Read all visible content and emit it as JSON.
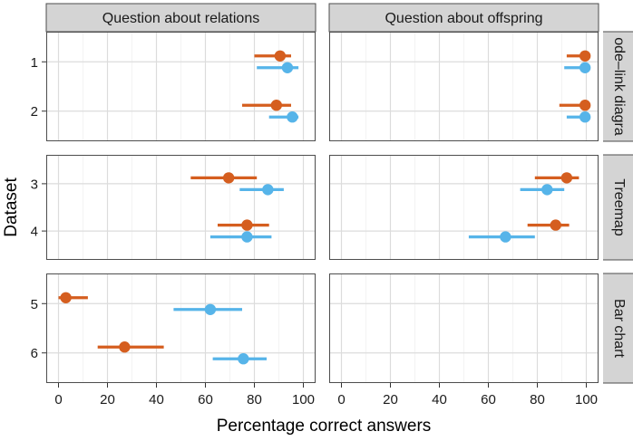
{
  "chart_data": {
    "type": "dot-interval",
    "xlabel": "Percentage correct answers",
    "ylabel": "Dataset",
    "xlim": [
      -5,
      105
    ],
    "x_ticks": [
      0,
      20,
      40,
      60,
      80,
      100
    ],
    "grid": true,
    "legend": "none",
    "columns": [
      "Question about relations",
      "Question about offspring"
    ],
    "rows": [
      {
        "label": "Node–link diagram",
        "shown_label": "ode–link diagra",
        "datasets": [
          "1",
          "2"
        ]
      },
      {
        "label": "Treemap",
        "shown_label": "Treemap",
        "datasets": [
          "3",
          "4"
        ]
      },
      {
        "label": "Bar chart",
        "shown_label": "Bar chart",
        "datasets": [
          "5",
          "6"
        ]
      }
    ],
    "series_colors": {
      "a": "#D55E1F",
      "b": "#56B4E9"
    },
    "points": [
      {
        "row": 0,
        "col": 0,
        "dataset": "1",
        "series": "a",
        "value": 90.5,
        "lo": 80,
        "hi": 95
      },
      {
        "row": 0,
        "col": 0,
        "dataset": "1",
        "series": "b",
        "value": 93.5,
        "lo": 81,
        "hi": 98
      },
      {
        "row": 0,
        "col": 0,
        "dataset": "2",
        "series": "a",
        "value": 89,
        "lo": 75,
        "hi": 95
      },
      {
        "row": 0,
        "col": 0,
        "dataset": "2",
        "series": "b",
        "value": 95.5,
        "lo": 86,
        "hi": 98
      },
      {
        "row": 0,
        "col": 1,
        "dataset": "1",
        "series": "a",
        "value": 99.5,
        "lo": 92,
        "hi": 100
      },
      {
        "row": 0,
        "col": 1,
        "dataset": "1",
        "series": "b",
        "value": 99.5,
        "lo": 91,
        "hi": 100
      },
      {
        "row": 0,
        "col": 1,
        "dataset": "2",
        "series": "a",
        "value": 99.5,
        "lo": 89,
        "hi": 100
      },
      {
        "row": 0,
        "col": 1,
        "dataset": "2",
        "series": "b",
        "value": 99.5,
        "lo": 92,
        "hi": 100
      },
      {
        "row": 1,
        "col": 0,
        "dataset": "3",
        "series": "a",
        "value": 69.5,
        "lo": 54,
        "hi": 81
      },
      {
        "row": 1,
        "col": 0,
        "dataset": "3",
        "series": "b",
        "value": 85.5,
        "lo": 74,
        "hi": 92
      },
      {
        "row": 1,
        "col": 0,
        "dataset": "4",
        "series": "a",
        "value": 77,
        "lo": 65,
        "hi": 86
      },
      {
        "row": 1,
        "col": 0,
        "dataset": "4",
        "series": "b",
        "value": 77,
        "lo": 62,
        "hi": 87
      },
      {
        "row": 1,
        "col": 1,
        "dataset": "3",
        "series": "a",
        "value": 92,
        "lo": 79,
        "hi": 97
      },
      {
        "row": 1,
        "col": 1,
        "dataset": "3",
        "series": "b",
        "value": 84,
        "lo": 73,
        "hi": 91
      },
      {
        "row": 1,
        "col": 1,
        "dataset": "4",
        "series": "a",
        "value": 87.5,
        "lo": 76,
        "hi": 93
      },
      {
        "row": 1,
        "col": 1,
        "dataset": "4",
        "series": "b",
        "value": 67,
        "lo": 52,
        "hi": 79
      },
      {
        "row": 2,
        "col": 0,
        "dataset": "5",
        "series": "a",
        "value": 3,
        "lo": 0,
        "hi": 12
      },
      {
        "row": 2,
        "col": 0,
        "dataset": "5",
        "series": "b",
        "value": 62,
        "lo": 47,
        "hi": 75
      },
      {
        "row": 2,
        "col": 0,
        "dataset": "6",
        "series": "a",
        "value": 27,
        "lo": 16,
        "hi": 43
      },
      {
        "row": 2,
        "col": 0,
        "dataset": "6",
        "series": "b",
        "value": 75.5,
        "lo": 63,
        "hi": 85
      }
    ]
  }
}
